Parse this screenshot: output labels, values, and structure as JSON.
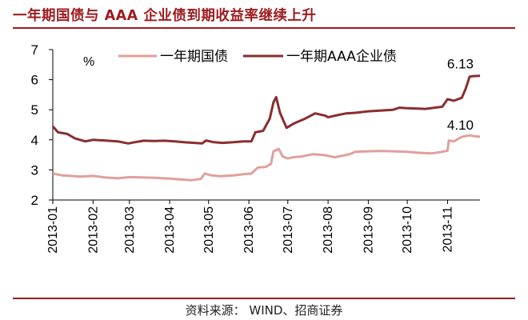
{
  "header": {
    "title": "一年期国债与 AAA 企业债到期收益率继续上升"
  },
  "footer": {
    "source": "资料来源：  WIND、招商证券"
  },
  "chart_data": {
    "type": "line",
    "title": "一年期国债与 AAA 企业债到期收益率继续上升",
    "ylabel": "%",
    "xlabel": "",
    "ylim": [
      2,
      7
    ],
    "yticks": [
      2,
      3,
      4,
      5,
      6,
      7
    ],
    "xlim": [
      "2013-01-01",
      "2013-11-26"
    ],
    "xticks": [
      "2013-01",
      "2013-02",
      "2013-03",
      "2013-04",
      "2013-05",
      "2013-06",
      "2013-07",
      "2013-08",
      "2013-09",
      "2013-10",
      "2013-11"
    ],
    "grid": false,
    "legend": "top",
    "series": [
      {
        "name": "一年期国债",
        "color": "#e0a09c",
        "end_label": "4.10",
        "points": [
          [
            "2013-01-01",
            2.88
          ],
          [
            "2013-01-08",
            2.82
          ],
          [
            "2013-01-15",
            2.8
          ],
          [
            "2013-01-22",
            2.78
          ],
          [
            "2013-02-01",
            2.8
          ],
          [
            "2013-02-10",
            2.75
          ],
          [
            "2013-02-20",
            2.72
          ],
          [
            "2013-03-01",
            2.76
          ],
          [
            "2013-03-10",
            2.75
          ],
          [
            "2013-03-20",
            2.74
          ],
          [
            "2013-04-01",
            2.71
          ],
          [
            "2013-04-10",
            2.68
          ],
          [
            "2013-04-18",
            2.66
          ],
          [
            "2013-04-25",
            2.7
          ],
          [
            "2013-04-28",
            2.88
          ],
          [
            "2013-05-03",
            2.82
          ],
          [
            "2013-05-10",
            2.79
          ],
          [
            "2013-05-20",
            2.82
          ],
          [
            "2013-05-28",
            2.86
          ],
          [
            "2013-06-03",
            2.88
          ],
          [
            "2013-06-08",
            3.08
          ],
          [
            "2013-06-14",
            3.1
          ],
          [
            "2013-06-18",
            3.2
          ],
          [
            "2013-06-20",
            3.62
          ],
          [
            "2013-06-24",
            3.7
          ],
          [
            "2013-06-27",
            3.45
          ],
          [
            "2013-07-01",
            3.38
          ],
          [
            "2013-07-05",
            3.42
          ],
          [
            "2013-07-12",
            3.45
          ],
          [
            "2013-07-20",
            3.52
          ],
          [
            "2013-07-28",
            3.5
          ],
          [
            "2013-08-01",
            3.47
          ],
          [
            "2013-08-06",
            3.42
          ],
          [
            "2013-08-12",
            3.47
          ],
          [
            "2013-08-18",
            3.53
          ],
          [
            "2013-08-22",
            3.6
          ],
          [
            "2013-09-01",
            3.62
          ],
          [
            "2013-09-10",
            3.63
          ],
          [
            "2013-09-20",
            3.62
          ],
          [
            "2013-10-01",
            3.6
          ],
          [
            "2013-10-10",
            3.57
          ],
          [
            "2013-10-20",
            3.55
          ],
          [
            "2013-10-28",
            3.6
          ],
          [
            "2013-11-01",
            3.64
          ],
          [
            "2013-11-02",
            3.98
          ],
          [
            "2013-11-06",
            3.95
          ],
          [
            "2013-11-12",
            4.1
          ],
          [
            "2013-11-18",
            4.15
          ],
          [
            "2013-11-22",
            4.12
          ],
          [
            "2013-11-26",
            4.1
          ]
        ]
      },
      {
        "name": "一年期AAA企业债",
        "color": "#8a2e30",
        "end_label": "6.13",
        "points": [
          [
            "2013-01-01",
            4.45
          ],
          [
            "2013-01-05",
            4.25
          ],
          [
            "2013-01-12",
            4.2
          ],
          [
            "2013-01-18",
            4.05
          ],
          [
            "2013-01-26",
            3.95
          ],
          [
            "2013-02-01",
            4.0
          ],
          [
            "2013-02-10",
            3.98
          ],
          [
            "2013-02-20",
            3.95
          ],
          [
            "2013-02-28",
            3.88
          ],
          [
            "2013-03-05",
            3.92
          ],
          [
            "2013-03-12",
            3.97
          ],
          [
            "2013-03-20",
            3.96
          ],
          [
            "2013-03-28",
            3.97
          ],
          [
            "2013-04-05",
            3.95
          ],
          [
            "2013-04-12",
            3.92
          ],
          [
            "2013-04-20",
            3.9
          ],
          [
            "2013-04-26",
            3.88
          ],
          [
            "2013-04-29",
            3.98
          ],
          [
            "2013-05-05",
            3.92
          ],
          [
            "2013-05-12",
            3.9
          ],
          [
            "2013-05-20",
            3.92
          ],
          [
            "2013-05-28",
            3.95
          ],
          [
            "2013-06-03",
            3.95
          ],
          [
            "2013-06-06",
            4.25
          ],
          [
            "2013-06-12",
            4.3
          ],
          [
            "2013-06-17",
            4.7
          ],
          [
            "2013-06-20",
            5.25
          ],
          [
            "2013-06-22",
            5.42
          ],
          [
            "2013-06-25",
            4.9
          ],
          [
            "2013-06-30",
            4.4
          ],
          [
            "2013-07-06",
            4.55
          ],
          [
            "2013-07-14",
            4.7
          ],
          [
            "2013-07-22",
            4.88
          ],
          [
            "2013-07-30",
            4.8
          ],
          [
            "2013-08-01",
            4.75
          ],
          [
            "2013-08-08",
            4.82
          ],
          [
            "2013-08-15",
            4.88
          ],
          [
            "2013-08-22",
            4.9
          ],
          [
            "2013-09-01",
            4.95
          ],
          [
            "2013-09-10",
            4.97
          ],
          [
            "2013-09-20",
            5.0
          ],
          [
            "2013-09-25",
            5.07
          ],
          [
            "2013-10-01",
            5.05
          ],
          [
            "2013-10-15",
            5.03
          ],
          [
            "2013-10-28",
            5.1
          ],
          [
            "2013-11-01",
            5.35
          ],
          [
            "2013-11-06",
            5.3
          ],
          [
            "2013-11-12",
            5.4
          ],
          [
            "2013-11-15",
            5.7
          ],
          [
            "2013-11-18",
            6.1
          ],
          [
            "2013-11-21",
            6.12
          ],
          [
            "2013-11-26",
            6.13
          ]
        ]
      }
    ]
  }
}
